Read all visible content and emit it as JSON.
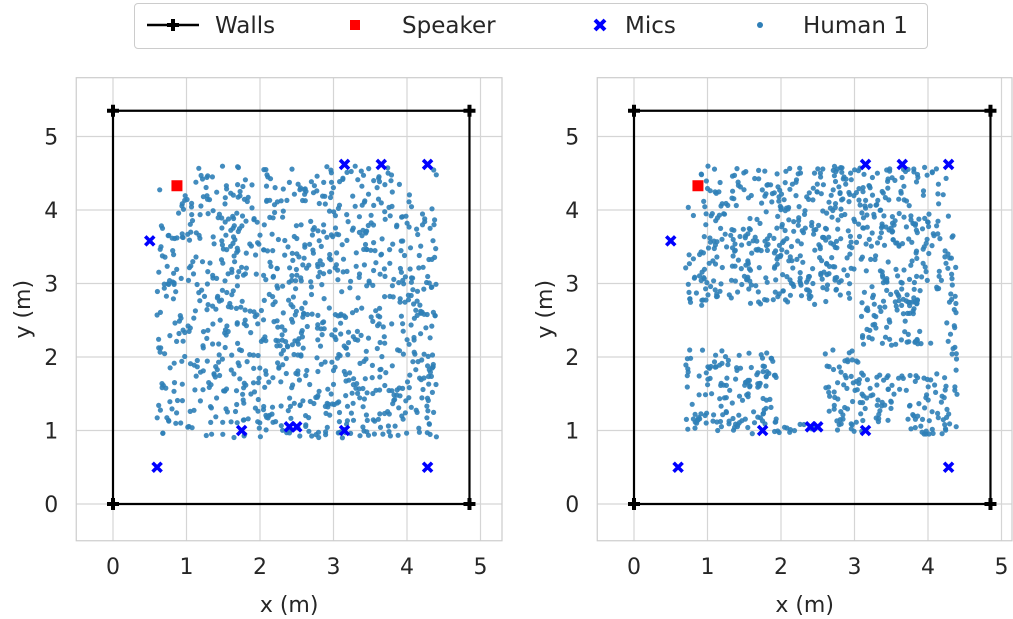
{
  "legend": {
    "items": [
      {
        "label": "Walls",
        "kind": "line",
        "color": "#000000"
      },
      {
        "label": "Speaker",
        "kind": "square",
        "color": "#ff0000"
      },
      {
        "label": "Mics",
        "kind": "x",
        "color": "#0000ff"
      },
      {
        "label": "Human 1",
        "kind": "dot",
        "color": "#2f7fb7"
      }
    ]
  },
  "colors": {
    "walls": "#000000",
    "speaker": "#ff0000",
    "mics": "#0000ff",
    "human": "#2f7fb7",
    "grid": "#d5d5d5",
    "frame": "#cccccc"
  },
  "chart_data": [
    {
      "type": "scatter",
      "xlabel": "x (m)",
      "ylabel": "y (m)",
      "xlim": [
        -0.5,
        5.3
      ],
      "ylim": [
        -0.5,
        5.8
      ],
      "xticks": [
        0,
        1,
        2,
        3,
        4,
        5
      ],
      "yticks": [
        0,
        1,
        2,
        3,
        4,
        5
      ],
      "grid": true,
      "walls": {
        "x": [
          0,
          4.85,
          4.85,
          0,
          0
        ],
        "y": [
          0,
          0,
          5.35,
          5.35,
          0
        ]
      },
      "speaker": {
        "x": 0.87,
        "y": 4.33
      },
      "mics": {
        "x": [
          0.5,
          3.15,
          3.65,
          4.28,
          0.6,
          1.75,
          2.4,
          2.5,
          3.15,
          4.28
        ],
        "y": [
          3.58,
          4.62,
          4.62,
          4.62,
          0.5,
          1.0,
          1.05,
          1.05,
          1.0,
          0.5
        ]
      },
      "human_region": {
        "x_range": [
          0.6,
          4.4
        ],
        "y_range": [
          0.9,
          4.6
        ],
        "holes": [
          [
            2.0,
            2.2,
            2.0,
            2.2
          ]
        ],
        "count": 1000
      }
    },
    {
      "type": "scatter",
      "xlabel": "x (m)",
      "ylabel": "y (m)",
      "xlim": [
        -0.5,
        5.3
      ],
      "ylim": [
        -0.5,
        5.8
      ],
      "xticks": [
        0,
        1,
        2,
        3,
        4,
        5
      ],
      "yticks": [
        0,
        1,
        2,
        3,
        4,
        5
      ],
      "grid": true,
      "walls": {
        "x": [
          0,
          4.85,
          4.85,
          0,
          0
        ],
        "y": [
          0,
          0,
          5.35,
          5.35,
          0
        ]
      },
      "speaker": {
        "x": 0.87,
        "y": 4.33
      },
      "mics": {
        "x": [
          0.5,
          3.15,
          3.65,
          4.28,
          0.6,
          1.75,
          2.4,
          2.5,
          3.15,
          4.28
        ],
        "y": [
          3.58,
          4.62,
          4.62,
          4.62,
          0.5,
          1.0,
          1.05,
          1.05,
          1.0,
          0.5
        ]
      },
      "human_region": {
        "x_range": [
          0.7,
          4.4
        ],
        "y_range": [
          0.95,
          4.6
        ],
        "holes": [
          [
            0.7,
            3.05,
            2.1,
            2.7
          ],
          [
            3.05,
            4.3,
            1.8,
            2.15
          ],
          [
            1.95,
            2.6,
            1.1,
            2.55
          ],
          [
            3.9,
            4.25,
            2.2,
            2.9
          ]
        ],
        "count": 1000
      }
    }
  ]
}
